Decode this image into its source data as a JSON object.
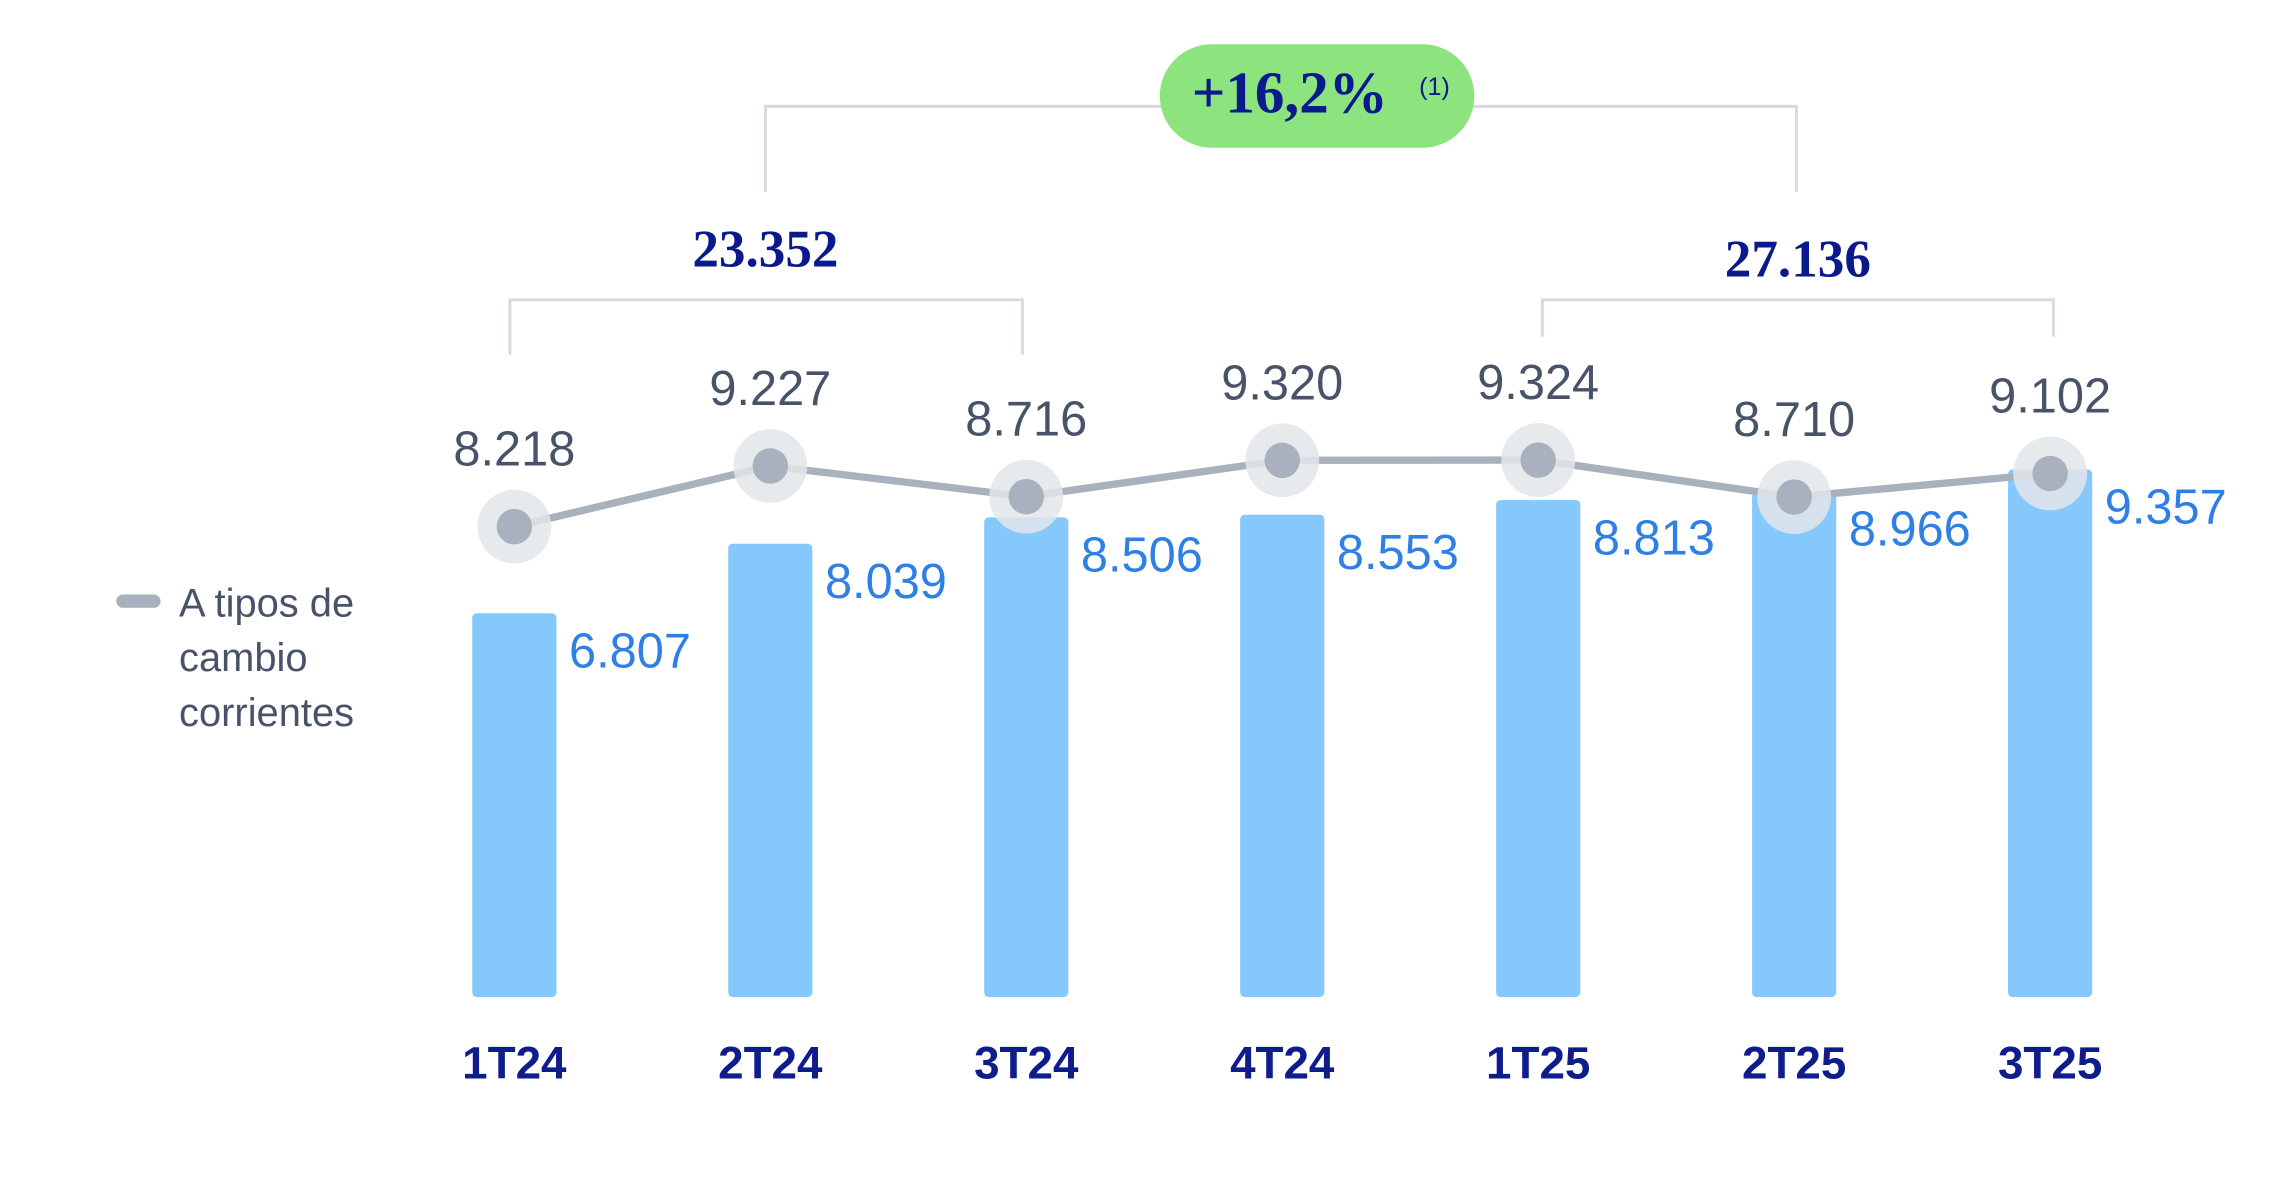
{
  "chart_data": {
    "type": "bar",
    "categories": [
      "1T24",
      "2T24",
      "3T24",
      "4T24",
      "1T25",
      "2T25",
      "3T25"
    ],
    "ylim": [
      0,
      17500
    ],
    "y2lim": [
      400,
      16800
    ],
    "series": [
      {
        "type": "bar",
        "color": "#85c8fc",
        "values": [
          6807,
          8039,
          8506,
          8553,
          8813,
          8966,
          9357
        ],
        "value_labels": [
          "6.807",
          "8.039",
          "8.506",
          "8.553",
          "8.813",
          "8.966",
          "9.357"
        ]
      },
      {
        "type": "line",
        "axis": "y2",
        "name": "A tipos de cambio corrientes",
        "color": "#a8b1bd",
        "values": [
          8218,
          9227,
          8716,
          9320,
          9324,
          8710,
          9102
        ],
        "value_labels": [
          "8.218",
          "9.227",
          "8.716",
          "9.320",
          "9.324",
          "8.710",
          "9.102"
        ]
      }
    ],
    "annotations": [
      {
        "text": "23.352"
      },
      {
        "text": "27.136"
      },
      {
        "text": "+16,2%"
      },
      {
        "text": "(1)"
      }
    ]
  }
}
